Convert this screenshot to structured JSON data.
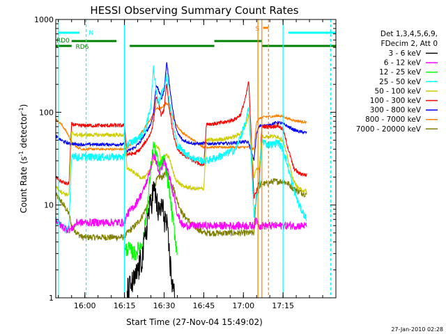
{
  "chart_data": {
    "type": "line",
    "title": "HESSI Observing Summary Count Rates",
    "xlabel": "Start Time (27-Nov-04 15:49:02)",
    "ylabel_main": "Count Rate (s",
    "ylabel_sup1": "-1",
    "ylabel_mid": " detector",
    "ylabel_sup2": "-1",
    "ylabel_end": ")",
    "y_scale": "log",
    "ylim": [
      1,
      1000
    ],
    "xlim_minutes": [
      0,
      106
    ],
    "x_ticks": [
      {
        "m": 11,
        "label": "16:00"
      },
      {
        "m": 26,
        "label": "16:15"
      },
      {
        "m": 41,
        "label": "16:30"
      },
      {
        "m": 56,
        "label": "16:45"
      },
      {
        "m": 71,
        "label": "17:00"
      },
      {
        "m": 86,
        "label": "17:15"
      }
    ],
    "y_ticks": [
      {
        "v": 1,
        "label": "1"
      },
      {
        "v": 10,
        "label": "10"
      },
      {
        "v": 100,
        "label": "100"
      },
      {
        "v": 1000,
        "label": "1000"
      }
    ],
    "legend": {
      "header1": "Det 1,3,4,5,6,9,",
      "header2": "FDecim 2, Att 0",
      "placement": "right"
    },
    "series": [
      {
        "name": "3 - 6 keV",
        "color": "#000000",
        "noise": 0.35,
        "x": [
          27,
          30,
          33,
          35,
          37,
          38,
          39,
          40,
          41,
          42,
          43,
          44,
          45
        ],
        "y": [
          1.2,
          1.6,
          3,
          8,
          15,
          12,
          8,
          10,
          8,
          6,
          3,
          1.5,
          1
        ]
      },
      {
        "name": "6 - 12 keV",
        "color": "#ff00ff",
        "noise": 0.1,
        "x": [
          0,
          2,
          4,
          6,
          8,
          10,
          12,
          14,
          16,
          18,
          20,
          22,
          24,
          26,
          27,
          30,
          33,
          35,
          37,
          38,
          39,
          40,
          41,
          42,
          43,
          44,
          45,
          46,
          48,
          52,
          56,
          57,
          60,
          64,
          68,
          70,
          72,
          73,
          75,
          76,
          77,
          78,
          80,
          82,
          84,
          86,
          88,
          90,
          92,
          95
        ],
        "y": [
          7,
          6,
          5.5,
          5.5,
          6.5,
          6.5,
          6.5,
          6.5,
          6.5,
          6.5,
          6.5,
          6.5,
          6.5,
          6.5,
          8,
          10,
          14,
          20,
          35,
          30,
          22,
          24,
          30,
          25,
          20,
          15,
          12,
          8,
          6,
          6,
          6,
          6,
          6,
          6,
          6,
          6,
          6,
          6,
          6,
          7,
          6,
          6,
          6,
          6,
          6,
          6,
          6,
          6,
          6,
          6
        ]
      },
      {
        "name": "12 - 25 keV",
        "color": "#00ff00",
        "noise": 0.2,
        "x": [
          26,
          27,
          30,
          33,
          35,
          36,
          37,
          38,
          39,
          40,
          41,
          42,
          43,
          44,
          45,
          46
        ],
        "y": [
          3,
          3.5,
          3,
          4,
          12,
          25,
          45,
          35,
          25,
          28,
          30,
          22,
          15,
          8,
          5,
          3
        ]
      },
      {
        "name": "25 - 50 keV",
        "color": "#00ffff",
        "noise": 0.1,
        "x": [
          0,
          2,
          4,
          5,
          6,
          8,
          10,
          12,
          14,
          16,
          18,
          20,
          22,
          24,
          26,
          27,
          30,
          32,
          34,
          36,
          37,
          38,
          39,
          40,
          41,
          42,
          43,
          44,
          45,
          46,
          48,
          52,
          56,
          57,
          60,
          64,
          68,
          70,
          72,
          73,
          75,
          76,
          77,
          78,
          80,
          82,
          84,
          86,
          88,
          90,
          92,
          95
        ],
        "y": [
          7,
          6,
          5.5,
          5.5,
          35,
          33,
          33,
          33,
          33,
          33,
          33,
          33,
          33,
          33,
          33,
          45,
          50,
          55,
          65,
          120,
          300,
          180,
          120,
          160,
          200,
          250,
          130,
          90,
          60,
          45,
          38,
          32,
          30,
          30,
          32,
          35,
          40,
          55,
          80,
          110,
          8,
          12,
          15,
          50,
          45,
          45,
          48,
          40,
          25,
          15,
          10,
          7
        ]
      },
      {
        "name": "50 - 100 keV",
        "color": "#cccc00",
        "noise": 0.05,
        "x": [
          0,
          2,
          4,
          5,
          6,
          8,
          10,
          12,
          14,
          16,
          18,
          20,
          22,
          24,
          26,
          27,
          30,
          32,
          34,
          36,
          37,
          38,
          39,
          40,
          41,
          42,
          43,
          44,
          45,
          46,
          48,
          52,
          56,
          57,
          60,
          64,
          68,
          70,
          72,
          73,
          75,
          76,
          77,
          78,
          80,
          82,
          84,
          86,
          88,
          90,
          92,
          95
        ],
        "y": [
          16,
          14,
          13,
          13,
          60,
          57,
          57,
          57,
          57,
          57,
          57,
          57,
          57,
          57,
          57,
          25,
          22,
          20,
          20,
          25,
          30,
          45,
          40,
          30,
          32,
          35,
          32,
          25,
          20,
          18,
          16,
          15,
          15,
          50,
          50,
          52,
          55,
          60,
          75,
          95,
          20,
          25,
          25,
          55,
          55,
          55,
          55,
          50,
          30,
          18,
          15,
          14
        ]
      },
      {
        "name": "100 - 300 keV",
        "color": "#ff0000",
        "noise": 0.05,
        "x": [
          0,
          2,
          4,
          5,
          6,
          8,
          10,
          12,
          14,
          16,
          18,
          20,
          22,
          24,
          26,
          27,
          30,
          32,
          34,
          36,
          37,
          38,
          39,
          40,
          41,
          42,
          43,
          44,
          45,
          46,
          48,
          52,
          56,
          57,
          60,
          64,
          68,
          70,
          72,
          73,
          75,
          76,
          77,
          78,
          80,
          82,
          84,
          86,
          88,
          90,
          92,
          95
        ],
        "y": [
          20,
          18,
          17,
          17,
          75,
          72,
          72,
          72,
          72,
          72,
          72,
          72,
          72,
          72,
          72,
          35,
          36,
          40,
          48,
          60,
          80,
          150,
          120,
          90,
          110,
          200,
          110,
          70,
          50,
          40,
          35,
          30,
          27,
          75,
          75,
          78,
          85,
          95,
          150,
          220,
          12,
          14,
          18,
          70,
          70,
          70,
          72,
          65,
          40,
          25,
          22,
          21
        ]
      },
      {
        "name": "300 - 800 keV",
        "color": "#0000ff",
        "noise": 0.04,
        "x": [
          0,
          2,
          4,
          5,
          6,
          8,
          10,
          12,
          14,
          16,
          18,
          20,
          22,
          24,
          26,
          27,
          30,
          32,
          34,
          36,
          37,
          38,
          39,
          40,
          41,
          42,
          43,
          44,
          45,
          46,
          48,
          52,
          56,
          57,
          60,
          64,
          68,
          70,
          72,
          73,
          75,
          76,
          77,
          78,
          80,
          82,
          84,
          86,
          88,
          90,
          92,
          95
        ],
        "y": [
          55,
          50,
          47,
          46,
          46,
          45,
          45,
          45,
          45,
          45,
          45,
          45,
          45,
          45,
          45,
          38,
          42,
          48,
          60,
          75,
          100,
          200,
          170,
          140,
          170,
          350,
          200,
          120,
          80,
          60,
          50,
          46,
          46,
          46,
          46,
          46,
          47,
          48,
          48,
          47,
          30,
          60,
          70,
          72,
          72,
          75,
          78,
          75,
          70,
          65,
          62,
          60
        ]
      },
      {
        "name": "800 - 7000 keV",
        "color": "#ff8000",
        "noise": 0.03,
        "x": [
          0,
          2,
          4,
          5,
          6,
          8,
          10,
          12,
          14,
          16,
          18,
          20,
          22,
          24,
          26,
          27,
          30,
          32,
          34,
          36,
          37,
          38,
          39,
          40,
          41,
          42,
          43,
          44,
          45,
          46,
          48,
          52,
          56,
          57,
          60,
          64,
          68,
          70,
          72,
          73,
          75,
          76,
          77,
          78,
          80,
          82,
          84,
          86,
          88,
          90,
          92,
          95
        ],
        "y": [
          85,
          75,
          62,
          55,
          48,
          42,
          40,
          40,
          40,
          40,
          40,
          40,
          40,
          40,
          40,
          42,
          48,
          58,
          70,
          85,
          95,
          110,
          110,
          110,
          120,
          125,
          110,
          95,
          80,
          70,
          60,
          50,
          42,
          42,
          42,
          42,
          42,
          42,
          42,
          42,
          40,
          80,
          85,
          88,
          90,
          90,
          92,
          90,
          85,
          82,
          80,
          78
        ]
      },
      {
        "name": "7000 - 20000 keV",
        "color": "#808000",
        "noise": 0.08,
        "x": [
          0,
          2,
          4,
          5,
          6,
          8,
          10,
          12,
          14,
          16,
          18,
          20,
          22,
          24,
          26,
          27,
          30,
          32,
          34,
          36,
          37,
          38,
          39,
          40,
          41,
          42,
          43,
          44,
          45,
          46,
          48,
          52,
          56,
          57,
          60,
          64,
          68,
          70,
          72,
          73,
          75,
          76,
          77,
          78,
          80,
          82,
          84,
          86,
          88,
          90,
          92,
          95
        ],
        "y": [
          13,
          11,
          9,
          8,
          6,
          5,
          4.5,
          4.5,
          4.5,
          4.5,
          4.5,
          4.5,
          4.5,
          4.5,
          4.5,
          5,
          6,
          7,
          9,
          12,
          15,
          18,
          20,
          20,
          21,
          22,
          20,
          17,
          14,
          11,
          8,
          6,
          5,
          5,
          5,
          5,
          5,
          5,
          5,
          5,
          5,
          15,
          16,
          17,
          17,
          18,
          18,
          18,
          17,
          15,
          14,
          13
        ]
      }
    ],
    "flags": [
      {
        "label": "N",
        "color": "#00ffff"
      },
      {
        "label": "RD0",
        "color": "#008000"
      },
      {
        "label": "RD6",
        "color": "#008000"
      },
      {
        "label": "S",
        "color": "#ff8000"
      }
    ],
    "datestamp": "27-Jan-2010 02:28"
  }
}
